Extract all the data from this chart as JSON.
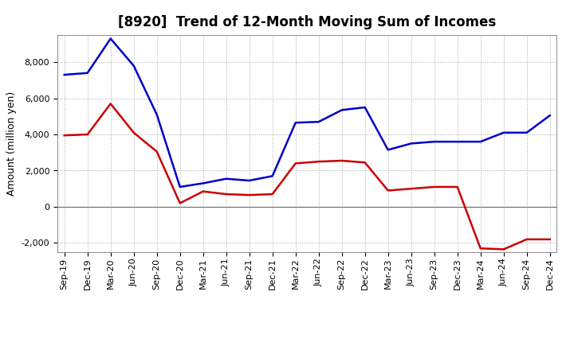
{
  "title": "[8920]  Trend of 12-Month Moving Sum of Incomes",
  "ylabel": "Amount (million yen)",
  "xlabels": [
    "Sep-19",
    "Dec-19",
    "Mar-20",
    "Jun-20",
    "Sep-20",
    "Dec-20",
    "Mar-21",
    "Jun-21",
    "Sep-21",
    "Dec-21",
    "Mar-22",
    "Jun-22",
    "Sep-22",
    "Dec-22",
    "Mar-23",
    "Jun-23",
    "Sep-23",
    "Dec-23",
    "Mar-24",
    "Jun-24",
    "Sep-24",
    "Dec-24"
  ],
  "ordinary_income": [
    7300,
    7400,
    9300,
    7800,
    5100,
    1100,
    1300,
    1550,
    1450,
    1700,
    4650,
    4700,
    5350,
    5500,
    3150,
    3500,
    3600,
    3600,
    3600,
    4100,
    4100,
    5050
  ],
  "net_income": [
    3950,
    4000,
    5700,
    4100,
    3050,
    200,
    850,
    700,
    650,
    700,
    2400,
    2500,
    2550,
    2450,
    900,
    1000,
    1100,
    1100,
    -2300,
    -2350,
    -1800,
    -1800
  ],
  "ordinary_color": "#0000cc",
  "net_color": "#cc0000",
  "ylim": [
    -2500,
    9500
  ],
  "yticks": [
    -2000,
    0,
    2000,
    4000,
    6000,
    8000
  ],
  "background_color": "#ffffff",
  "grid_color": "#aaaaaa",
  "zero_line_color": "#666666",
  "title_fontsize": 12,
  "legend_fontsize": 9,
  "axis_fontsize": 8,
  "ylabel_fontsize": 9,
  "line_width": 1.8
}
